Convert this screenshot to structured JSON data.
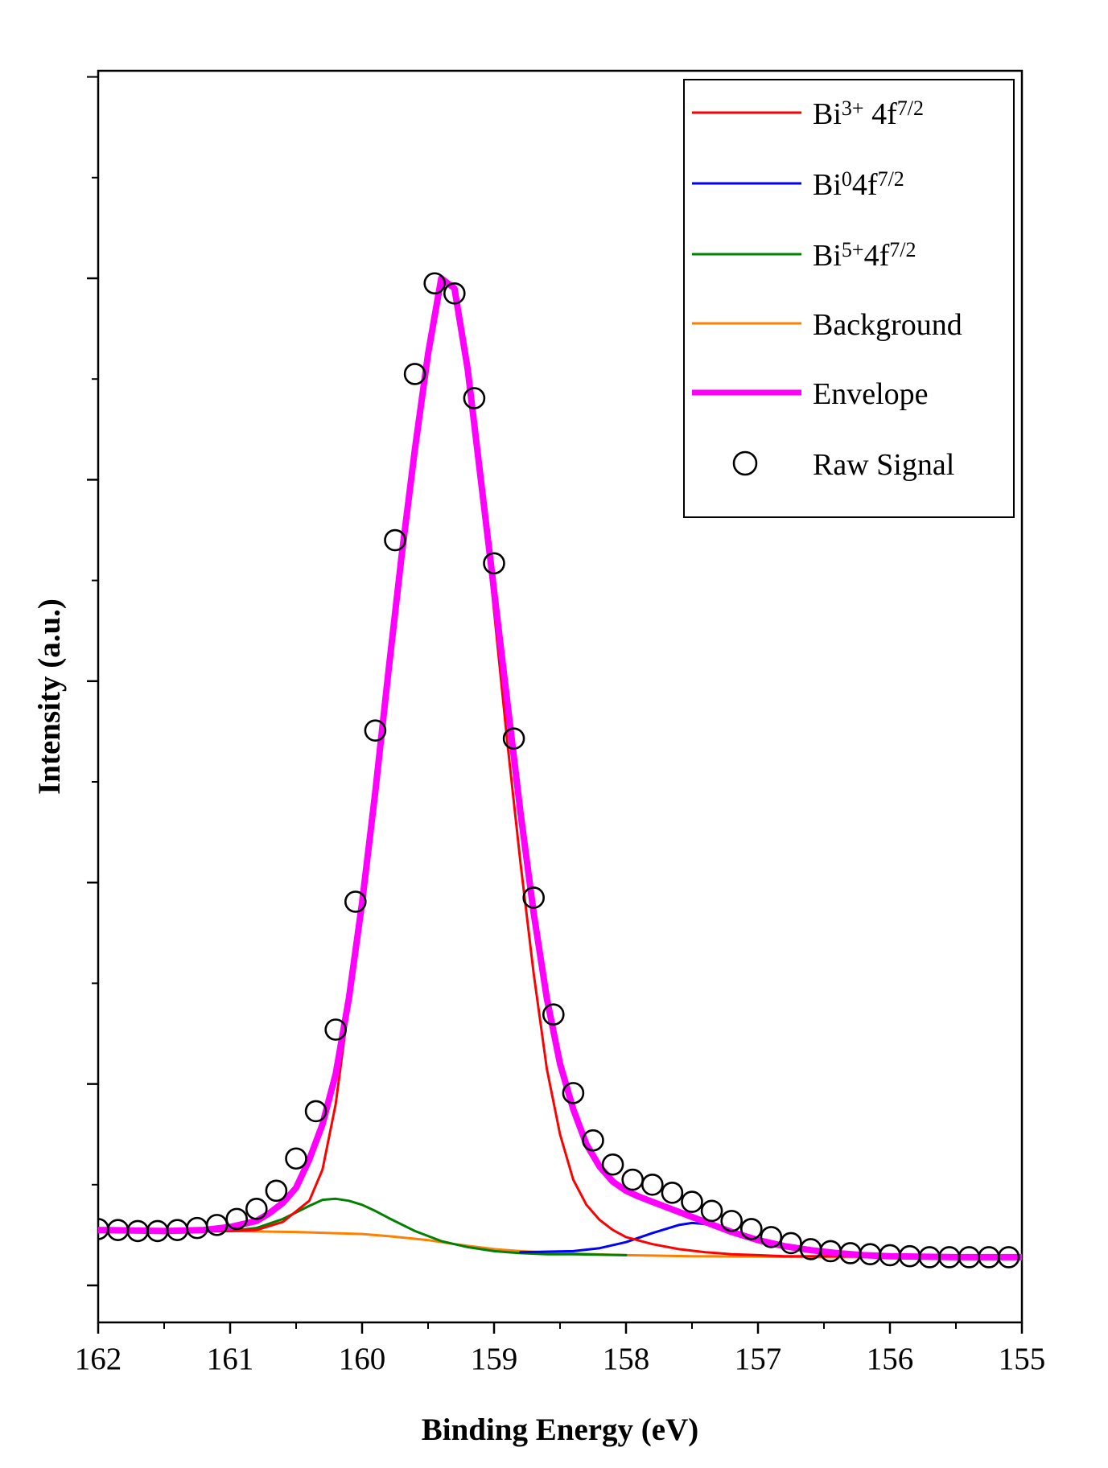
{
  "chart_data": {
    "type": "line",
    "title": "",
    "xlabel": "Binding Energy (eV)",
    "ylabel": "Intensity (a.u.)",
    "xlim": [
      162,
      155
    ],
    "ylim": [
      0,
      100
    ],
    "x_reversed": true,
    "xticks": [
      162,
      161,
      160,
      159,
      158,
      157,
      156,
      155
    ],
    "xtick_labels": [
      "162",
      "161",
      "160",
      "159",
      "158",
      "157",
      "156",
      "155"
    ],
    "y_tick_labels_shown": false,
    "legend_position": "top-right",
    "series": [
      {
        "key": "bi3",
        "name": "Bi3+ 4f7/2",
        "legend": {
          "base": "Bi",
          "sup1": "3+",
          "mid": " 4f",
          "sup2": "7/2"
        },
        "color": "#ff0000",
        "kind": "line",
        "x": [
          162.0,
          161.5,
          161.0,
          160.8,
          160.6,
          160.4,
          160.3,
          160.2,
          160.1,
          160.0,
          159.9,
          159.8,
          159.7,
          159.6,
          159.5,
          159.4,
          159.3,
          159.2,
          159.1,
          159.0,
          158.9,
          158.8,
          158.7,
          158.6,
          158.5,
          158.4,
          158.3,
          158.2,
          158.1,
          158.0,
          157.8,
          157.6,
          157.4,
          157.2,
          157.0,
          156.8,
          156.5,
          156.0,
          155.5,
          155.0
        ],
        "y": [
          5.3,
          5.3,
          5.4,
          5.5,
          6.3,
          8.4,
          11.5,
          18.0,
          28.0,
          39.5,
          50.0,
          62.0,
          73.0,
          84.0,
          93.0,
          100.0,
          99.0,
          91.0,
          80.0,
          67.0,
          54.0,
          42.0,
          31.0,
          21.5,
          15.0,
          10.5,
          8.0,
          6.5,
          5.5,
          4.8,
          4.1,
          3.6,
          3.3,
          3.1,
          3.0,
          2.9,
          2.9,
          2.9,
          2.9,
          2.9
        ]
      },
      {
        "key": "bi0",
        "name": "Bi0 4f7/2",
        "legend": {
          "base": "Bi",
          "sup1": "0",
          "mid": "4f",
          "sup2": "7/2"
        },
        "color": "#0000ff",
        "kind": "line",
        "x": [
          158.8,
          158.4,
          158.2,
          158.0,
          157.8,
          157.6,
          157.5,
          157.4,
          157.2,
          157.0,
          156.8,
          156.6,
          156.4,
          156.0,
          155.5,
          155.0
        ],
        "y": [
          3.3,
          3.4,
          3.7,
          4.3,
          5.2,
          6.0,
          6.2,
          6.1,
          5.5,
          4.6,
          3.9,
          3.4,
          3.1,
          2.9,
          2.8,
          2.8
        ]
      },
      {
        "key": "bi5",
        "name": "Bi5+ 4f7/2",
        "legend": {
          "base": "Bi",
          "sup1": "5+",
          "mid": "4f",
          "sup2": "7/2"
        },
        "color": "#008000",
        "kind": "line",
        "x": [
          161.0,
          160.8,
          160.6,
          160.4,
          160.3,
          160.2,
          160.1,
          160.0,
          159.9,
          159.8,
          159.6,
          159.4,
          159.2,
          159.0,
          158.8,
          158.6,
          158.4,
          158.0
        ],
        "y": [
          5.4,
          5.7,
          6.6,
          7.9,
          8.5,
          8.6,
          8.4,
          8.0,
          7.4,
          6.7,
          5.4,
          4.4,
          3.8,
          3.4,
          3.2,
          3.1,
          3.1,
          3.0
        ]
      },
      {
        "key": "bg",
        "name": "Background",
        "legend": {
          "base": "Background",
          "sup1": "",
          "mid": "",
          "sup2": ""
        },
        "color": "#ff7f00",
        "kind": "line",
        "x": [
          162.0,
          161.0,
          160.5,
          160.0,
          159.8,
          159.5,
          159.3,
          159.0,
          158.8,
          158.5,
          158.0,
          157.5,
          157.0,
          156.5,
          156.0,
          155.0
        ],
        "y": [
          5.4,
          5.4,
          5.3,
          5.1,
          4.9,
          4.5,
          4.1,
          3.6,
          3.4,
          3.2,
          3.0,
          2.9,
          2.85,
          2.8,
          2.8,
          2.8
        ]
      },
      {
        "key": "env",
        "name": "Envelope",
        "legend": {
          "base": "Envelope",
          "sup1": "",
          "mid": "",
          "sup2": ""
        },
        "color": "#ff00ff",
        "kind": "thick-line",
        "x": [
          162.0,
          161.5,
          161.2,
          161.0,
          160.8,
          160.7,
          160.6,
          160.5,
          160.4,
          160.3,
          160.2,
          160.1,
          160.0,
          159.9,
          159.8,
          159.7,
          159.6,
          159.5,
          159.4,
          159.3,
          159.2,
          159.1,
          159.0,
          158.9,
          158.8,
          158.7,
          158.6,
          158.5,
          158.4,
          158.3,
          158.2,
          158.1,
          158.0,
          157.9,
          157.8,
          157.6,
          157.4,
          157.2,
          157.0,
          156.8,
          156.6,
          156.4,
          156.2,
          156.0,
          155.5,
          155.0
        ],
        "y": [
          5.5,
          5.4,
          5.5,
          5.8,
          6.4,
          7.2,
          8.2,
          9.7,
          12.5,
          16.0,
          21.0,
          28.5,
          38.0,
          49.0,
          61.0,
          72.5,
          83.0,
          92.5,
          100.0,
          99.0,
          91.0,
          80.0,
          69.0,
          58.0,
          47.0,
          37.0,
          28.5,
          22.0,
          17.5,
          14.0,
          11.8,
          10.3,
          9.4,
          8.8,
          8.3,
          7.3,
          6.3,
          5.3,
          4.5,
          3.9,
          3.5,
          3.2,
          3.0,
          2.9,
          2.8,
          2.8
        ]
      },
      {
        "key": "raw",
        "name": "Raw Signal",
        "legend": {
          "base": "Raw Signal",
          "sup1": "",
          "mid": "",
          "sup2": ""
        },
        "color": "#000000",
        "kind": "markers",
        "x": [
          162.0,
          161.85,
          161.7,
          161.55,
          161.4,
          161.25,
          161.1,
          160.95,
          160.8,
          160.65,
          160.5,
          160.35,
          160.2,
          160.05,
          159.9,
          159.75,
          159.6,
          159.45,
          159.3,
          159.15,
          159.0,
          158.85,
          158.7,
          158.55,
          158.4,
          158.25,
          158.1,
          157.95,
          157.8,
          157.65,
          157.5,
          157.35,
          157.2,
          157.05,
          156.9,
          156.75,
          156.6,
          156.45,
          156.3,
          156.15,
          156.0,
          155.85,
          155.7,
          155.55,
          155.4,
          155.25,
          155.1
        ],
        "y": [
          5.6,
          5.5,
          5.4,
          5.4,
          5.5,
          5.7,
          6.0,
          6.6,
          7.6,
          9.4,
          12.6,
          17.3,
          25.4,
          38.1,
          55.1,
          74.0,
          90.5,
          99.5,
          98.5,
          88.1,
          71.7,
          54.3,
          38.5,
          26.9,
          19.1,
          14.4,
          12.0,
          10.5,
          10.0,
          9.2,
          8.3,
          7.4,
          6.4,
          5.6,
          4.8,
          4.2,
          3.6,
          3.4,
          3.2,
          3.1,
          3.0,
          2.9,
          2.8,
          2.8,
          2.8,
          2.8,
          2.8
        ]
      }
    ]
  }
}
